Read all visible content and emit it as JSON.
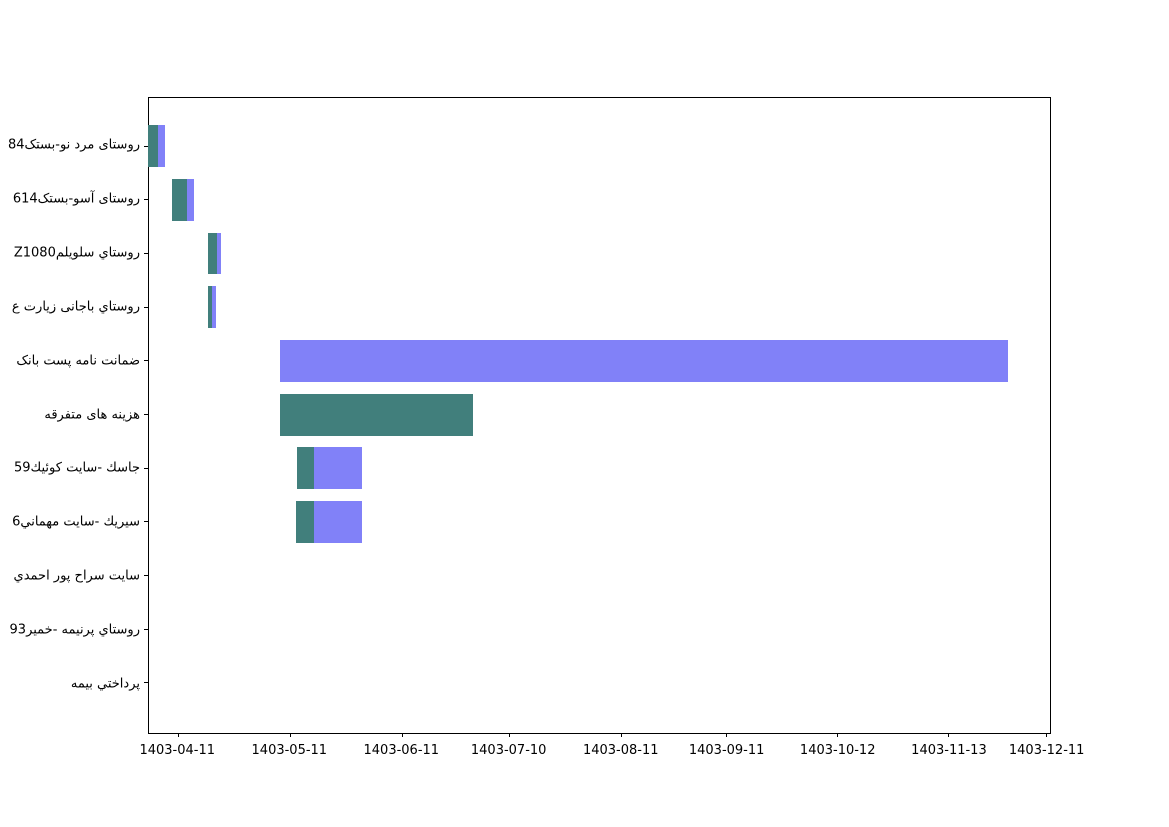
{
  "figure": {
    "background": "#ffffff",
    "plot_border_color": "#000000"
  },
  "chart_data": {
    "type": "gantt",
    "title": "",
    "xlabel": "",
    "ylabel": "",
    "grid": false,
    "legend": "none",
    "calendar": "jalali",
    "colors": {
      "teal_segment": "#417f7c",
      "purple_segment": "#8181f8"
    },
    "x_axis": {
      "ticks": [
        {
          "label": "1403-04-11",
          "pos_pct": 3.24
        },
        {
          "label": "1403-05-11",
          "pos_pct": 15.65
        },
        {
          "label": "1403-06-11",
          "pos_pct": 28.05
        },
        {
          "label": "1403-07-10",
          "pos_pct": 39.94
        },
        {
          "label": "1403-08-11",
          "pos_pct": 52.35
        },
        {
          "label": "1403-09-11",
          "pos_pct": 64.08
        },
        {
          "label": "1403-10-12",
          "pos_pct": 76.38
        },
        {
          "label": "1403-11-13",
          "pos_pct": 88.7
        },
        {
          "label": "1403-12-11",
          "pos_pct": 99.52
        }
      ]
    },
    "bar_height_pct": 6.59,
    "tasks": [
      {
        "label": "روستای مرد نو-بستک84",
        "center_pct": 7.59,
        "segments": [
          {
            "color": "teal",
            "start_date": "1403-04-03",
            "end_date": "1403-04-05",
            "start_pct": -0.1,
            "end_pct": 1.0
          },
          {
            "color": "purple",
            "start_date": "1403-04-05",
            "end_date": "1403-04-07",
            "start_pct": 1.0,
            "end_pct": 1.81
          }
        ]
      },
      {
        "label": "روستای آسو-بستک614",
        "center_pct": 16.04,
        "segments": [
          {
            "color": "teal",
            "start_date": "1403-04-09",
            "end_date": "1403-04-13",
            "start_pct": 2.51,
            "end_pct": 4.21
          },
          {
            "color": "purple",
            "start_date": "1403-04-13",
            "end_date": "1403-04-15",
            "start_pct": 4.21,
            "end_pct": 4.98
          }
        ]
      },
      {
        "label": "روستاي سلويلمZ1080",
        "center_pct": 24.49,
        "segments": [
          {
            "color": "teal",
            "start_date": "1403-04-19",
            "end_date": "1403-04-22",
            "start_pct": 6.53,
            "end_pct": 7.53
          },
          {
            "color": "purple",
            "start_date": "1403-04-22",
            "end_date": "1403-04-23",
            "start_pct": 7.53,
            "end_pct": 7.97
          }
        ]
      },
      {
        "label": "روستاي باجانی زيارت ع",
        "center_pct": 32.94,
        "segments": [
          {
            "color": "teal",
            "start_date": "1403-04-19",
            "end_date": "1403-04-20",
            "start_pct": 6.53,
            "end_pct": 6.98
          },
          {
            "color": "purple",
            "start_date": "1403-04-20",
            "end_date": "1403-04-22",
            "start_pct": 6.98,
            "end_pct": 7.42
          }
        ]
      },
      {
        "label": "ضمانت نامه پست بانک",
        "center_pct": 41.4,
        "segments": [
          {
            "color": "purple",
            "start_date": "1403-05-08",
            "end_date": "1403-11-28",
            "start_pct": 14.54,
            "end_pct": 95.35
          }
        ]
      },
      {
        "label": "هزینه های متفرقه",
        "center_pct": 49.85,
        "segments": [
          {
            "color": "teal",
            "start_date": "1403-05-08",
            "end_date": "1403-06-30",
            "start_pct": 14.54,
            "end_pct": 35.91
          }
        ]
      },
      {
        "label": "جاسك -سايت كوئيك59",
        "center_pct": 58.3,
        "segments": [
          {
            "color": "teal",
            "start_date": "1403-05-13",
            "end_date": "1403-05-18",
            "start_pct": 16.39,
            "end_pct": 18.35
          },
          {
            "color": "purple",
            "start_date": "1403-05-18",
            "end_date": "1403-05-31",
            "start_pct": 18.35,
            "end_pct": 23.59
          }
        ]
      },
      {
        "label": "سيريك -سايت مهماني6",
        "center_pct": 66.76,
        "segments": [
          {
            "color": "teal",
            "start_date": "1403-05-12",
            "end_date": "1403-05-18",
            "start_pct": 16.31,
            "end_pct": 18.35
          },
          {
            "color": "purple",
            "start_date": "1403-05-18",
            "end_date": "1403-05-31",
            "start_pct": 18.35,
            "end_pct": 23.59
          }
        ]
      },
      {
        "label": "سايت سراح پور احمدي",
        "center_pct": 75.21,
        "segments": []
      },
      {
        "label": "روستاي پرنيمه -خمير93",
        "center_pct": 83.66,
        "segments": []
      },
      {
        "label": "پرداختي بيمه",
        "center_pct": 92.11,
        "segments": []
      }
    ]
  }
}
